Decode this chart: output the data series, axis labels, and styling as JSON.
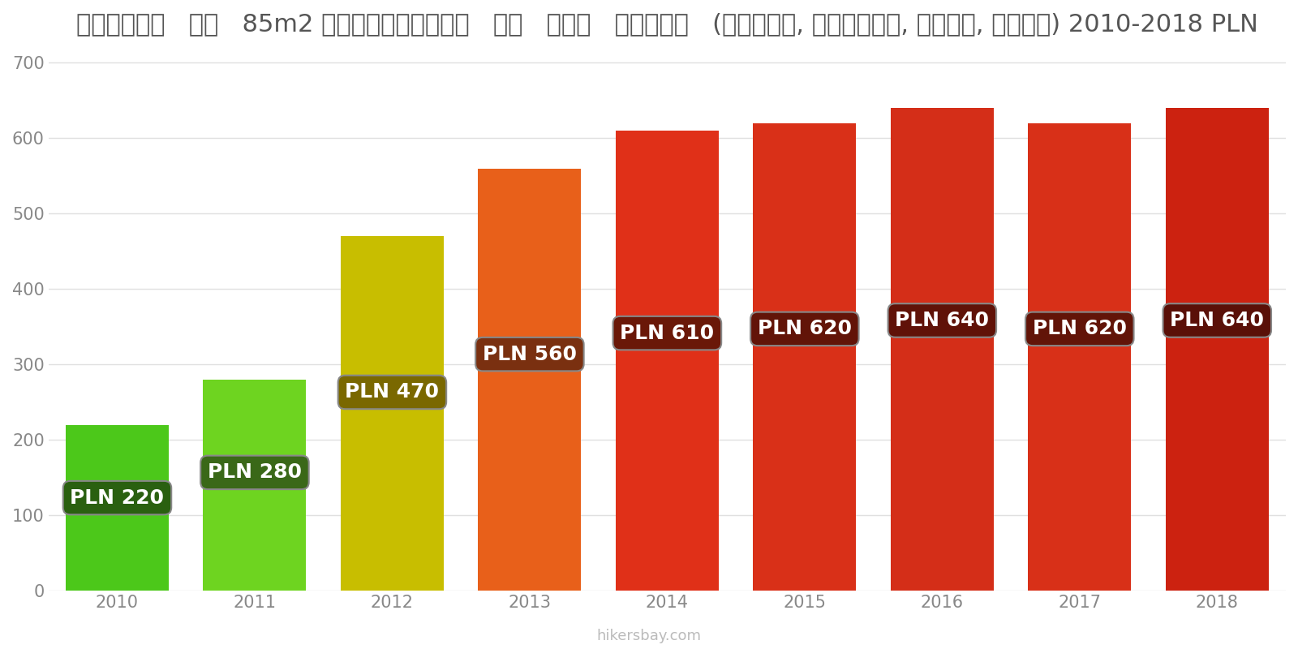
{
  "years": [
    "2010",
    "2011",
    "2012",
    "2013",
    "2014",
    "2015",
    "2016",
    "2017",
    "2018"
  ],
  "values": [
    220,
    280,
    470,
    560,
    610,
    620,
    640,
    620,
    640
  ],
  "bar_colors": [
    "#4cc81a",
    "#6ed420",
    "#c8be00",
    "#e8601a",
    "#e03018",
    "#d93018",
    "#d42e18",
    "#d83018",
    "#cc2210"
  ],
  "label_bg_colors": [
    "#2a6010",
    "#3a6818",
    "#7a6800",
    "#7a3010",
    "#6a1808",
    "#621408",
    "#601208",
    "#621408",
    "#5a1008"
  ],
  "label_text_color": "#ffffff",
  "title": "पोलैंड   एक   85m2 अपार्टमेंट   के   लिए   शुल्क   (बिजली, हीटिंग, पानी, कचरा) 2010-2018 PLN",
  "ylim": [
    0,
    720
  ],
  "yticks": [
    0,
    100,
    200,
    300,
    400,
    500,
    600,
    700
  ],
  "watermark": "hikersbay.com",
  "background_color": "#ffffff",
  "grid_color": "#e0e0e0",
  "title_fontsize": 22,
  "tick_fontsize": 15,
  "label_fontsize": 18,
  "bar_width": 0.75
}
